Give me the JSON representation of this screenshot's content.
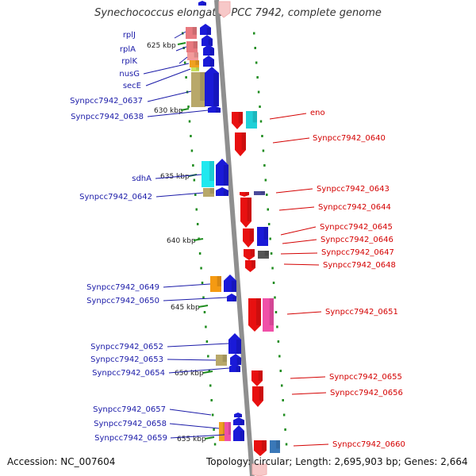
{
  "title": "Synechococcus elongatus PCC 7942, complete genome",
  "footer": {
    "accession": "Accession: NC_007604",
    "summary": "Topology: circular; Length: 2,695,903 bp; Genes: 2,664"
  },
  "colors": {
    "backbone": "#8f8f8f",
    "forward_label": "#1a1aa8",
    "reverse_label": "#d40000",
    "tick": "#1e8c1e",
    "kbp_label": "#222222"
  },
  "kbp_markers": [
    {
      "label": "625 kbp"
    },
    {
      "label": "630 kbp"
    },
    {
      "label": "635 kbp"
    },
    {
      "label": "640 kbp"
    },
    {
      "label": "645 kbp"
    },
    {
      "label": "650 kbp"
    },
    {
      "label": "655 kbp"
    }
  ],
  "forward_genes": [
    {
      "label": "rplJ",
      "color": "#e8797f"
    },
    {
      "label": "rplA",
      "color": "#e8797f"
    },
    {
      "label": "rplK",
      "color": "#f39a9a"
    },
    {
      "label": "nusG",
      "color": "#f0a020"
    },
    {
      "label": "secE",
      "color": "#c8e05a"
    },
    {
      "label": "Synpcc7942_0637",
      "color": "#b8a86a"
    },
    {
      "label": "Synpcc7942_0638",
      "color": "#1a1ad8"
    },
    {
      "label": "sdhA",
      "color": "#20e8ef"
    },
    {
      "label": "Synpcc7942_0642",
      "color": "#b8a86a"
    },
    {
      "label": "Synpcc7942_0649",
      "color": "#f59a12"
    },
    {
      "label": "Synpcc7942_0650",
      "color": "#1a1ad8"
    },
    {
      "label": "Synpcc7942_0652",
      "color": "#1a1ad8"
    },
    {
      "label": "Synpcc7942_0653",
      "color": "#b8a86a"
    },
    {
      "label": "Synpcc7942_0654",
      "color": "#1a1ad8"
    },
    {
      "label": "Synpcc7942_0657",
      "color": "#1a1ad8"
    },
    {
      "label": "Synpcc7942_0658",
      "color": "#f0a020"
    },
    {
      "label": "Synpcc7942_0659",
      "color": "#f050a8"
    }
  ],
  "reverse_genes": [
    {
      "label": "eno",
      "color": "#e81010"
    },
    {
      "label": "Synpcc7942_0640",
      "color": "#e81010"
    },
    {
      "label": "Synpcc7942_0643",
      "color": "#4a4a9a"
    },
    {
      "label": "Synpcc7942_0644",
      "color": "#e81010"
    },
    {
      "label": "Synpcc7942_0645",
      "color": "#1a1ad8"
    },
    {
      "label": "Synpcc7942_0646",
      "color": "#e81010"
    },
    {
      "label": "Synpcc7942_0647",
      "color": "#555555"
    },
    {
      "label": "Synpcc7942_0648",
      "color": "#e81010"
    },
    {
      "label": "Synpcc7942_0651",
      "color": "#f050a8"
    },
    {
      "label": "Synpcc7942_0655",
      "color": "#e81010"
    },
    {
      "label": "Synpcc7942_0656",
      "color": "#e81010"
    },
    {
      "label": "Synpcc7942_0660",
      "color": "#3a78b8"
    }
  ]
}
